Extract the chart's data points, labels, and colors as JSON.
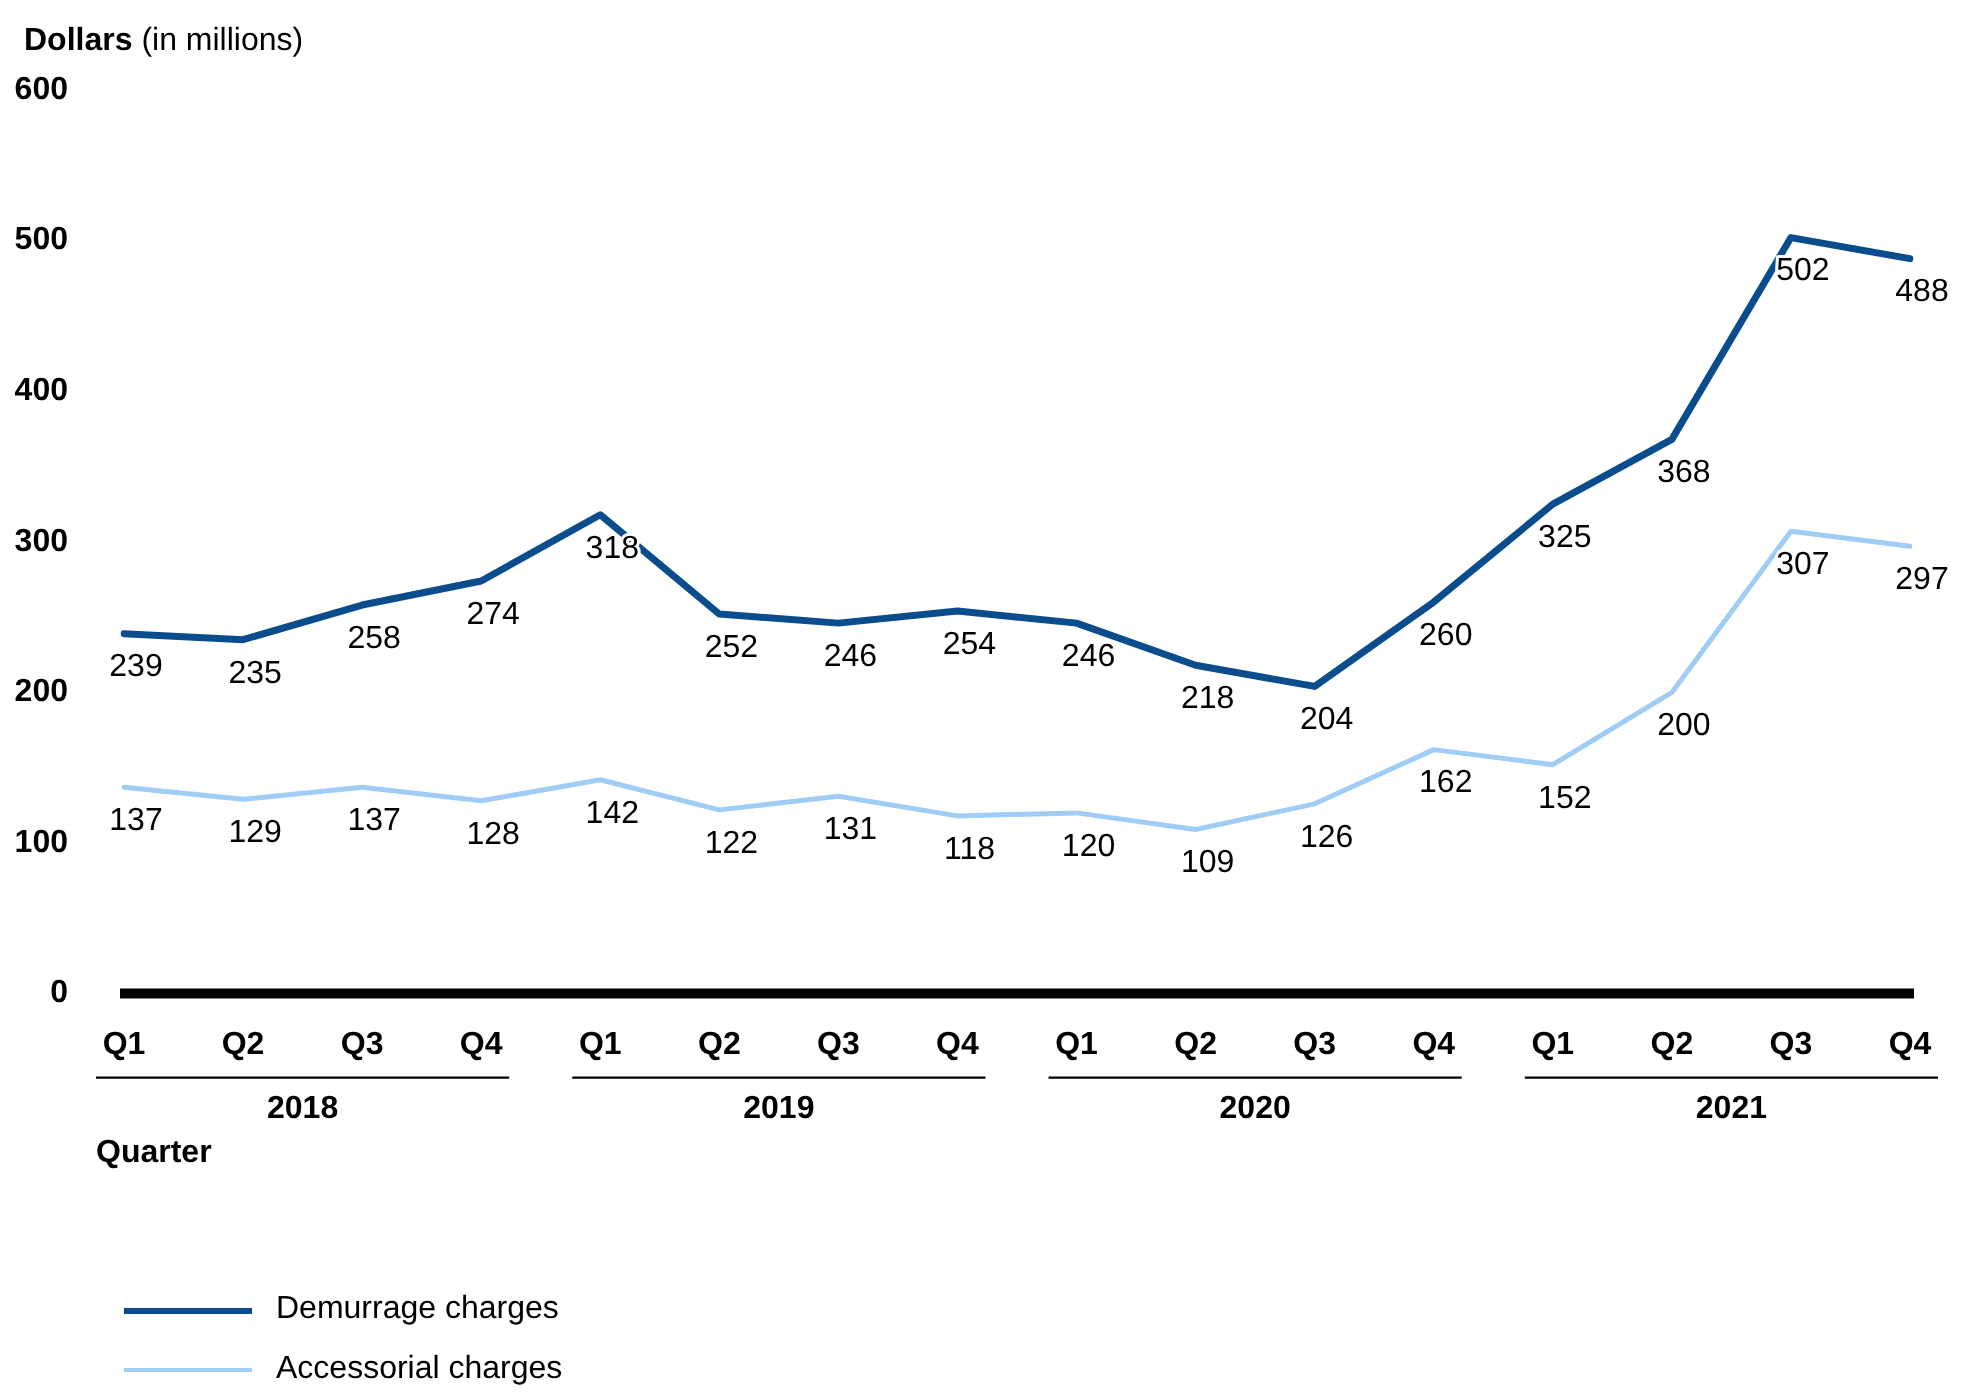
{
  "chart_data": {
    "type": "line",
    "ylabel": "Dollars (in millions)",
    "xlabel": "Quarter",
    "categories": [
      "Q1",
      "Q2",
      "Q3",
      "Q4",
      "Q1",
      "Q2",
      "Q3",
      "Q4",
      "Q1",
      "Q2",
      "Q3",
      "Q4",
      "Q1",
      "Q2",
      "Q3",
      "Q4"
    ],
    "annotations": [
      "2018",
      "2019",
      "2020",
      "2021"
    ],
    "series": [
      {
        "name": "Demurrage charges",
        "color": "#0b4d8c",
        "values": [
          239,
          235,
          258,
          274,
          318,
          252,
          246,
          254,
          246,
          218,
          204,
          260,
          325,
          368,
          502,
          488
        ]
      },
      {
        "name": "Accessorial charges",
        "color": "#9fcdf5",
        "values": [
          137,
          129,
          137,
          128,
          142,
          122,
          131,
          118,
          120,
          109,
          126,
          162,
          152,
          200,
          307,
          297
        ]
      }
    ],
    "ylim": [
      0,
      600
    ],
    "yticks": [
      0,
      100,
      200,
      300,
      400,
      500,
      600
    ],
    "grid": false,
    "legend": "bottom",
    "data_labels": true,
    "marker": "none"
  }
}
